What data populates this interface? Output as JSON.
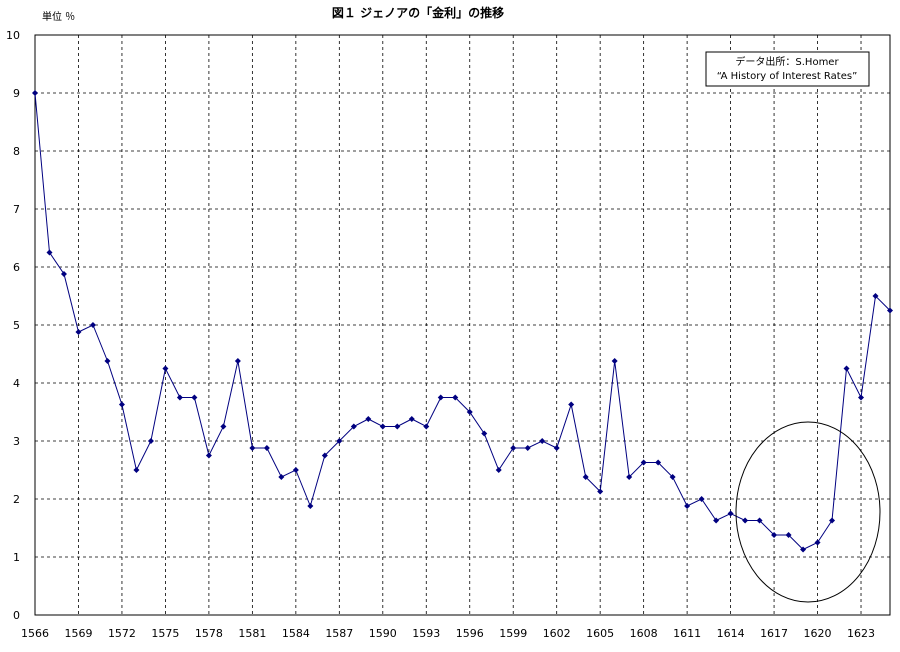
{
  "chart_data": {
    "type": "line",
    "title": "図１ ジェノアの「金利」の推移",
    "unit_label": "単位 ％",
    "source_line1": "データ出所：S.Homer",
    "source_line2": "“A History of Interest Rates”",
    "xlabel": "",
    "ylabel": "",
    "ylim": [
      0,
      10
    ],
    "xlim": [
      1566,
      1625
    ],
    "x_ticks": [
      1566,
      1569,
      1572,
      1575,
      1578,
      1581,
      1584,
      1587,
      1590,
      1593,
      1596,
      1599,
      1602,
      1605,
      1608,
      1611,
      1614,
      1617,
      1620,
      1623
    ],
    "y_ticks": [
      0,
      1,
      2,
      3,
      4,
      5,
      6,
      7,
      8,
      9,
      10
    ],
    "grid": true,
    "series_color": "#000080",
    "x": [
      1566,
      1567,
      1568,
      1569,
      1570,
      1571,
      1572,
      1573,
      1574,
      1575,
      1576,
      1577,
      1578,
      1579,
      1580,
      1581,
      1582,
      1583,
      1584,
      1585,
      1586,
      1587,
      1588,
      1589,
      1590,
      1591,
      1592,
      1593,
      1594,
      1595,
      1596,
      1597,
      1598,
      1599,
      1600,
      1601,
      1602,
      1603,
      1604,
      1605,
      1606,
      1607,
      1608,
      1609,
      1610,
      1611,
      1612,
      1613,
      1614,
      1615,
      1616,
      1617,
      1618,
      1619,
      1620,
      1621,
      1622,
      1623,
      1624,
      1625
    ],
    "values": [
      9.0,
      6.25,
      5.88,
      4.88,
      5.0,
      4.38,
      3.63,
      2.5,
      3.0,
      4.25,
      3.75,
      3.75,
      2.75,
      3.25,
      4.38,
      2.88,
      2.88,
      2.38,
      2.5,
      1.88,
      2.75,
      3.0,
      3.25,
      3.38,
      3.25,
      3.25,
      3.38,
      3.25,
      3.75,
      3.75,
      3.5,
      3.13,
      2.5,
      2.88,
      2.88,
      3.0,
      2.88,
      3.63,
      2.38,
      2.13,
      4.38,
      2.38,
      2.63,
      2.63,
      2.38,
      1.88,
      2.0,
      1.63,
      1.75,
      1.63,
      1.63,
      1.38,
      1.38,
      1.13,
      1.25,
      1.63,
      4.25,
      3.75,
      5.5,
      5.25
    ]
  }
}
